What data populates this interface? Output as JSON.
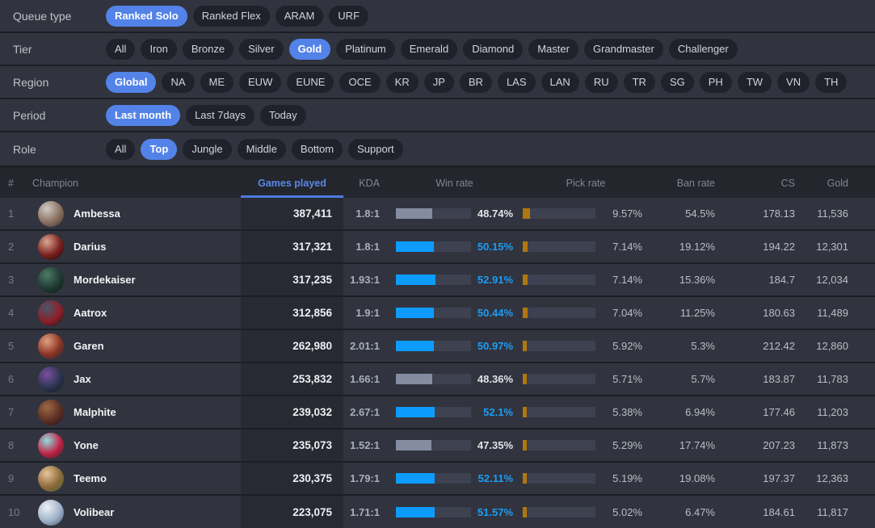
{
  "colors": {
    "accent_blue": "#5383e8",
    "header_sort_blue": "#4d7ce0",
    "win_bar_blue": "#0d9bfd",
    "win_bar_gray": "#858ca0",
    "pick_bar_amber": "#b0770f",
    "bar_track": "#3d4150"
  },
  "filters": [
    {
      "label": "Queue type",
      "name": "queue-type",
      "options": [
        {
          "label": "Ranked Solo",
          "selected": true
        },
        {
          "label": "Ranked Flex",
          "selected": false
        },
        {
          "label": "ARAM",
          "selected": false
        },
        {
          "label": "URF",
          "selected": false
        }
      ]
    },
    {
      "label": "Tier",
      "name": "tier",
      "options": [
        {
          "label": "All",
          "selected": false
        },
        {
          "label": "Iron",
          "selected": false
        },
        {
          "label": "Bronze",
          "selected": false
        },
        {
          "label": "Silver",
          "selected": false
        },
        {
          "label": "Gold",
          "selected": true
        },
        {
          "label": "Platinum",
          "selected": false
        },
        {
          "label": "Emerald",
          "selected": false
        },
        {
          "label": "Diamond",
          "selected": false
        },
        {
          "label": "Master",
          "selected": false
        },
        {
          "label": "Grandmaster",
          "selected": false
        },
        {
          "label": "Challenger",
          "selected": false
        }
      ]
    },
    {
      "label": "Region",
      "name": "region",
      "options": [
        {
          "label": "Global",
          "selected": true
        },
        {
          "label": "NA",
          "selected": false
        },
        {
          "label": "ME",
          "selected": false
        },
        {
          "label": "EUW",
          "selected": false
        },
        {
          "label": "EUNE",
          "selected": false
        },
        {
          "label": "OCE",
          "selected": false
        },
        {
          "label": "KR",
          "selected": false
        },
        {
          "label": "JP",
          "selected": false
        },
        {
          "label": "BR",
          "selected": false
        },
        {
          "label": "LAS",
          "selected": false
        },
        {
          "label": "LAN",
          "selected": false
        },
        {
          "label": "RU",
          "selected": false
        },
        {
          "label": "TR",
          "selected": false
        },
        {
          "label": "SG",
          "selected": false
        },
        {
          "label": "PH",
          "selected": false
        },
        {
          "label": "TW",
          "selected": false
        },
        {
          "label": "VN",
          "selected": false
        },
        {
          "label": "TH",
          "selected": false
        }
      ]
    },
    {
      "label": "Period",
      "name": "period",
      "options": [
        {
          "label": "Last month",
          "selected": true
        },
        {
          "label": "Last 7days",
          "selected": false
        },
        {
          "label": "Today",
          "selected": false
        }
      ]
    },
    {
      "label": "Role",
      "name": "role",
      "options": [
        {
          "label": "All",
          "selected": false
        },
        {
          "label": "Top",
          "selected": true
        },
        {
          "label": "Jungle",
          "selected": false
        },
        {
          "label": "Middle",
          "selected": false
        },
        {
          "label": "Bottom",
          "selected": false
        },
        {
          "label": "Support",
          "selected": false
        }
      ]
    }
  ],
  "table": {
    "columns": [
      "#",
      "Champion",
      "Games played",
      "KDA",
      "Win rate",
      "Pick rate",
      "Ban rate",
      "CS",
      "Gold"
    ],
    "sorted_column": "Games played",
    "rows": [
      {
        "rank": "1",
        "champion": "Ambessa",
        "games": "387,411",
        "kda": "1.8:1",
        "win_rate": "48.74%",
        "win_value": 48.74,
        "win_positive": false,
        "pick_rate": "9.57%",
        "pick_value": 9.57,
        "ban_rate": "54.5%",
        "cs": "178.13",
        "gold": "11,536",
        "avatar_colors": [
          "#cfcbc6",
          "#8a6f5f",
          "#3a3330"
        ]
      },
      {
        "rank": "2",
        "champion": "Darius",
        "games": "317,321",
        "kda": "1.8:1",
        "win_rate": "50.15%",
        "win_value": 50.15,
        "win_positive": true,
        "pick_rate": "7.14%",
        "pick_value": 7.14,
        "ban_rate": "19.12%",
        "cs": "194.22",
        "gold": "12,301",
        "avatar_colors": [
          "#d8a88f",
          "#7a1f1f",
          "#14090b"
        ]
      },
      {
        "rank": "3",
        "champion": "Mordekaiser",
        "games": "317,235",
        "kda": "1.93:1",
        "win_rate": "52.91%",
        "win_value": 52.91,
        "win_positive": true,
        "pick_rate": "7.14%",
        "pick_value": 7.14,
        "ban_rate": "15.36%",
        "cs": "184.7",
        "gold": "12,034",
        "avatar_colors": [
          "#4f7a68",
          "#1e3b33",
          "#0a1410"
        ]
      },
      {
        "rank": "4",
        "champion": "Aatrox",
        "games": "312,856",
        "kda": "1.9:1",
        "win_rate": "50.44%",
        "win_value": 50.44,
        "win_positive": true,
        "pick_rate": "7.04%",
        "pick_value": 7.04,
        "ban_rate": "11.25%",
        "cs": "180.63",
        "gold": "11,489",
        "avatar_colors": [
          "#4a5668",
          "#8c1f28",
          "#121721"
        ]
      },
      {
        "rank": "5",
        "champion": "Garen",
        "games": "262,980",
        "kda": "2.01:1",
        "win_rate": "50.97%",
        "win_value": 50.97,
        "win_positive": true,
        "pick_rate": "5.92%",
        "pick_value": 5.92,
        "ban_rate": "5.3%",
        "cs": "212.42",
        "gold": "12,860",
        "avatar_colors": [
          "#e0a080",
          "#8a3424",
          "#1b2740"
        ]
      },
      {
        "rank": "6",
        "champion": "Jax",
        "games": "253,832",
        "kda": "1.66:1",
        "win_rate": "48.36%",
        "win_value": 48.36,
        "win_positive": false,
        "pick_rate": "5.71%",
        "pick_value": 5.71,
        "ban_rate": "5.7%",
        "cs": "183.87",
        "gold": "11,783",
        "avatar_colors": [
          "#7b4fa0",
          "#2c3550",
          "#10121f"
        ]
      },
      {
        "rank": "7",
        "champion": "Malphite",
        "games": "239,032",
        "kda": "2.67:1",
        "win_rate": "52.1%",
        "win_value": 52.1,
        "win_positive": true,
        "pick_rate": "5.38%",
        "pick_value": 5.38,
        "ban_rate": "6.94%",
        "cs": "177.46",
        "gold": "11,203",
        "avatar_colors": [
          "#9c6844",
          "#5c2f25",
          "#201012"
        ]
      },
      {
        "rank": "8",
        "champion": "Yone",
        "games": "235,073",
        "kda": "1.52:1",
        "win_rate": "47.35%",
        "win_value": 47.35,
        "win_positive": false,
        "pick_rate": "5.29%",
        "pick_value": 5.29,
        "ban_rate": "17.74%",
        "cs": "207.23",
        "gold": "11,873",
        "avatar_colors": [
          "#8fdede",
          "#c22045",
          "#20262e"
        ]
      },
      {
        "rank": "9",
        "champion": "Teemo",
        "games": "230,375",
        "kda": "1.79:1",
        "win_rate": "52.11%",
        "win_value": 52.11,
        "win_positive": true,
        "pick_rate": "5.19%",
        "pick_value": 5.19,
        "ban_rate": "19.08%",
        "cs": "197.37",
        "gold": "12,363",
        "avatar_colors": [
          "#e8c49a",
          "#8a6a3a",
          "#4a5a38"
        ]
      },
      {
        "rank": "10",
        "champion": "Volibear",
        "games": "223,075",
        "kda": "1.71:1",
        "win_rate": "51.57%",
        "win_value": 51.57,
        "win_positive": true,
        "pick_rate": "5.02%",
        "pick_value": 5.02,
        "ban_rate": "6.47%",
        "cs": "184.61",
        "gold": "11,817",
        "avatar_colors": [
          "#eef1f6",
          "#9fb2c8",
          "#44526b"
        ]
      }
    ]
  }
}
